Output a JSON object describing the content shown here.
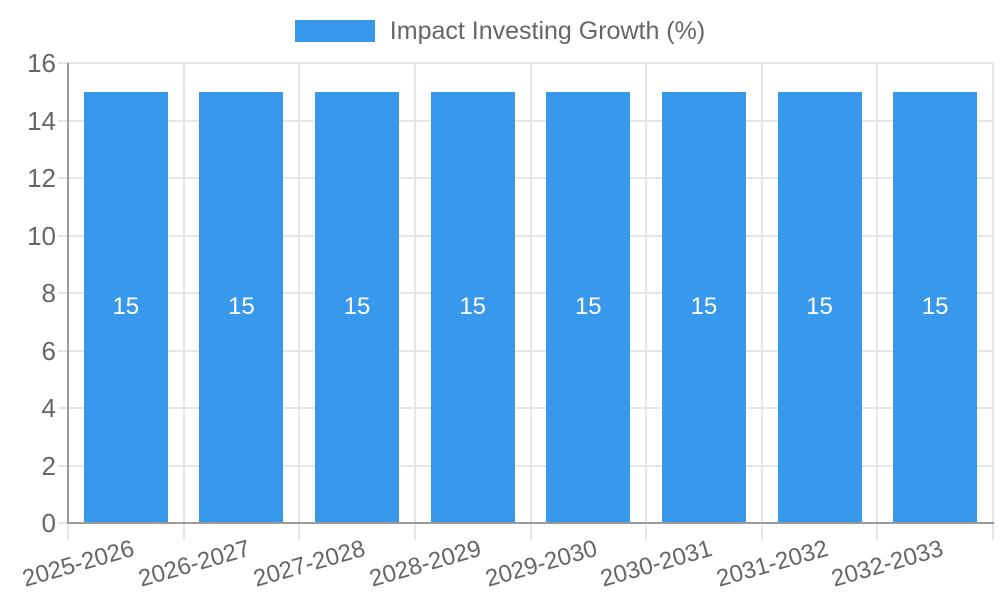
{
  "chart_data": {
    "type": "bar",
    "title": "Impact Investing Growth (%)",
    "legend": {
      "label": "Impact Investing Growth (%)",
      "position": "top"
    },
    "categories": [
      "2025-2026",
      "2026-2027",
      "2027-2028",
      "2028-2029",
      "2029-2030",
      "2030-2031",
      "2031-2032",
      "2032-2033"
    ],
    "series": [
      {
        "name": "Impact Investing Growth (%)",
        "values": [
          15,
          15,
          15,
          15,
          15,
          15,
          15,
          15
        ],
        "data_labels": [
          "15",
          "15",
          "15",
          "15",
          "15",
          "15",
          "15",
          "15"
        ]
      }
    ],
    "xlabel": "",
    "ylabel": "",
    "ylim": [
      0,
      16
    ],
    "y_ticks": [
      "0",
      "2",
      "4",
      "6",
      "8",
      "10",
      "12",
      "14",
      "16"
    ],
    "grid": "on",
    "colors": {
      "bar": "#3898ec",
      "grid_line": "#e6e6e6",
      "axis_line": "#9a9a9a",
      "tick_text": "#666666",
      "bar_label_text": "#ffffff"
    }
  }
}
